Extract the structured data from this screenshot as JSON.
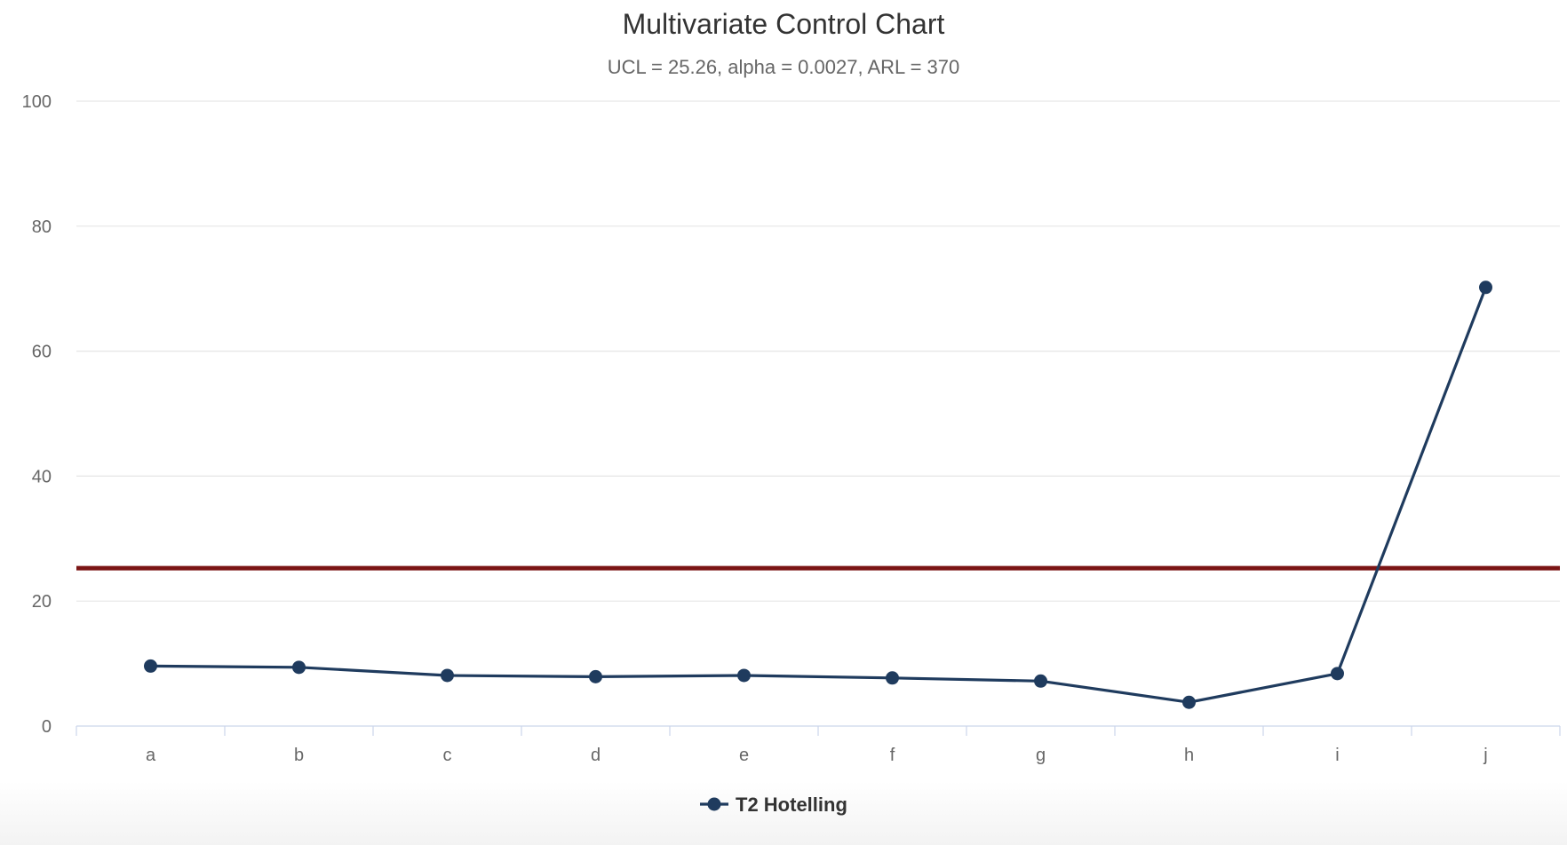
{
  "chart_data": {
    "type": "line",
    "title": "Multivariate Control Chart",
    "subtitle": "UCL = 25.26, alpha = 0.0027, ARL = 370",
    "xlabel": "",
    "ylabel": "",
    "categories": [
      "a",
      "b",
      "c",
      "d",
      "e",
      "f",
      "g",
      "h",
      "i",
      "j"
    ],
    "series": [
      {
        "name": "T2 Hotelling",
        "color": "#1f3b5e",
        "values": [
          9.6,
          9.4,
          8.1,
          7.9,
          8.1,
          7.7,
          7.2,
          3.8,
          8.4,
          70.2
        ]
      }
    ],
    "control_limit": {
      "value": 25.26,
      "color": "#7b1515"
    },
    "ylim": [
      0,
      100
    ],
    "yticks": [
      0,
      20,
      40,
      60,
      80,
      100
    ],
    "grid": true,
    "legend": "bottom-center"
  }
}
